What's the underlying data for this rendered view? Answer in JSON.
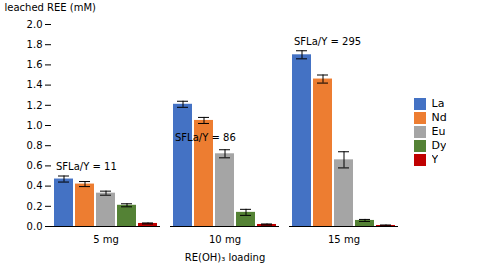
{
  "chart_data": {
    "type": "bar",
    "xlabel": "RE(OH)₃ loading",
    "ylabel": "leached REE (mM)",
    "categories": [
      "5 mg",
      "10 mg",
      "15 mg"
    ],
    "series": [
      {
        "name": "La",
        "color": "#4472C4",
        "values": [
          0.47,
          1.21,
          1.7
        ],
        "errors": [
          0.03,
          0.03,
          0.04
        ]
      },
      {
        "name": "Nd",
        "color": "#ED7D31",
        "values": [
          0.42,
          1.05,
          1.46
        ],
        "errors": [
          0.025,
          0.03,
          0.04
        ]
      },
      {
        "name": "Eu",
        "color": "#A5A5A5",
        "values": [
          0.33,
          0.72,
          0.66
        ],
        "errors": [
          0.02,
          0.04,
          0.08
        ]
      },
      {
        "name": "Dy",
        "color": "#548235",
        "values": [
          0.21,
          0.14,
          0.06
        ],
        "errors": [
          0.015,
          0.03,
          0.01
        ]
      },
      {
        "name": "Y",
        "color": "#C00000",
        "values": [
          0.03,
          0.02,
          0.01
        ],
        "errors": [
          0.005,
          0.005,
          0.005
        ]
      }
    ],
    "annotations": [
      {
        "text": "SFLa/Y = 11",
        "category": "5 mg",
        "y": 0.56
      },
      {
        "text": "SFLa/Y = 86",
        "category": "10 mg",
        "y": 0.85
      },
      {
        "text": "SFLa/Y = 295",
        "category": "15 mg",
        "y": 1.8
      }
    ],
    "ylim": [
      0,
      2.0
    ],
    "yticks": [
      {
        "value": 0,
        "label": "0.0"
      },
      0.2,
      0.4,
      0.6,
      0.8,
      {
        "value": 1,
        "label": "1.0"
      },
      1.2,
      1.4,
      1.6,
      1.8,
      {
        "value": 2,
        "label": "2.0"
      }
    ],
    "grid": false,
    "legend": "right"
  }
}
